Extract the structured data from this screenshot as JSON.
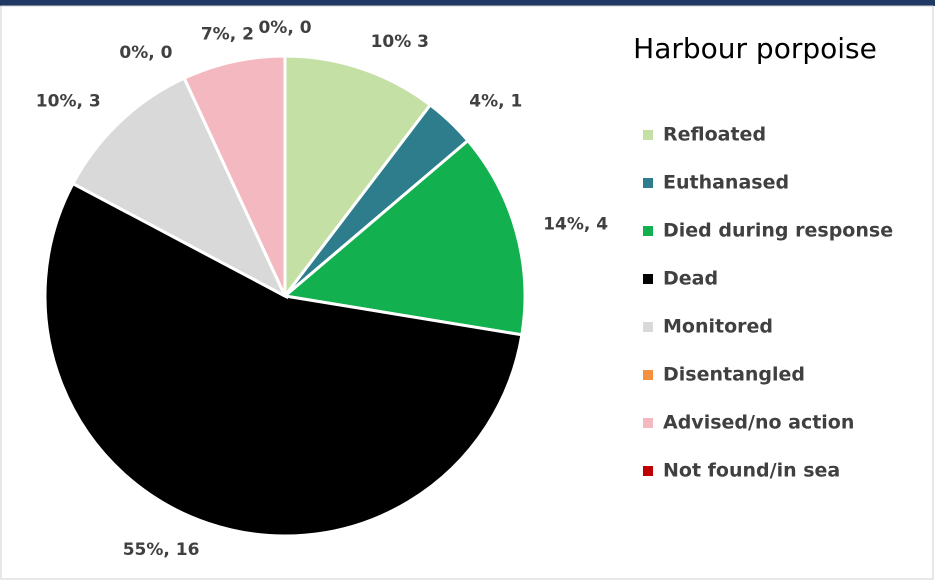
{
  "chart_data": {
    "type": "pie",
    "title": "Harbour porpoise",
    "categories": [
      "Refloated",
      "Euthanased",
      "Died during response",
      "Dead",
      "Monitored",
      "Disentangled",
      "Advised/no action",
      "Not found/in sea"
    ],
    "values": [
      3,
      1,
      4,
      16,
      3,
      0,
      2,
      0
    ],
    "value_labels": [
      "10% 3",
      "4%, 1",
      "14%, 4",
      "55%, 16",
      "10%, 3",
      "0%, 0",
      "7%, 2",
      "0%, 0"
    ],
    "colors": [
      "#c5e0a5",
      "#2e7d8c",
      "#13b04f",
      "#000000",
      "#d9d9d9",
      "#f4903e",
      "#f4b8c0",
      "#c00000"
    ],
    "legend": "right"
  }
}
